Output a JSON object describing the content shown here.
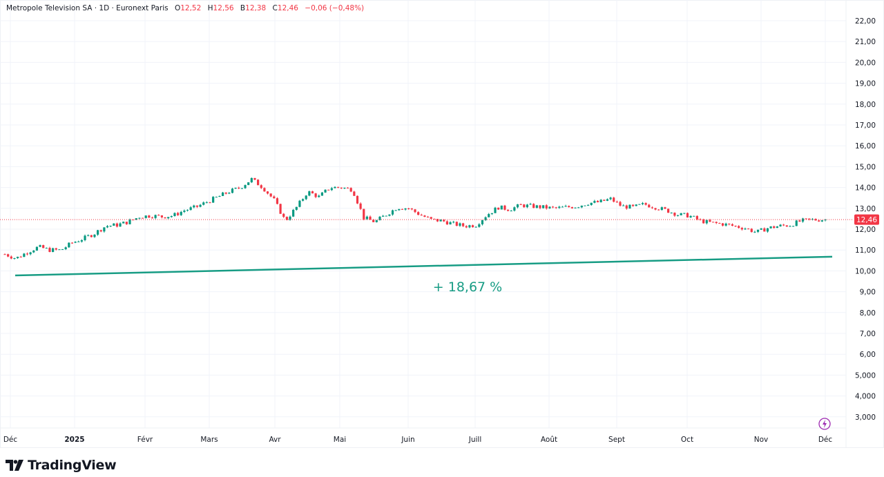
{
  "header": {
    "symbol": "Metropole Television SA · 1D · Euronext Paris",
    "open_label": "O",
    "open": "12,52",
    "high_label": "H",
    "high": "12,56",
    "low_label": "B",
    "low": "12,38",
    "close_label": "C",
    "close": "12,46",
    "change": "−0,06 (−0,48%)"
  },
  "chart_data": {
    "type": "candlestick",
    "y_ticks": [
      "22,00",
      "21,00",
      "20,00",
      "19,00",
      "18,00",
      "17,00",
      "16,00",
      "15,00",
      "14,00",
      "13,00",
      "12,00",
      "11,00",
      "10,00",
      "9,00",
      "8,00",
      "7,00",
      "6,00",
      "5,000",
      "4,000",
      "3,000"
    ],
    "ylim": [
      3,
      22
    ],
    "x_ticks": [
      "Déc",
      "2025",
      "Févr",
      "Mars",
      "Avr",
      "Mai",
      "Juin",
      "Juill",
      "Août",
      "Sept",
      "Oct",
      "Nov",
      "Déc"
    ],
    "closes": [
      10.8,
      10.6,
      10.9,
      11.15,
      11.0,
      11.0,
      11.35,
      11.55,
      11.8,
      12.15,
      12.2,
      12.35,
      12.6,
      12.65,
      12.6,
      12.65,
      12.9,
      13.05,
      13.3,
      13.55,
      13.8,
      14.0,
      14.4,
      14.0,
      13.4,
      12.4,
      13.05,
      13.8,
      13.55,
      14.0,
      14.0,
      13.9,
      12.55,
      12.35,
      12.7,
      13.05,
      13.0,
      12.7,
      12.45,
      12.4,
      12.25,
      12.15,
      12.2,
      12.7,
      13.05,
      12.95,
      13.15,
      13.1,
      13.05,
      13.0,
      13.05,
      13.1,
      13.25,
      13.3,
      13.45,
      13.1,
      13.05,
      13.2,
      13.05,
      12.9,
      12.7,
      12.65,
      12.4,
      12.3,
      12.25,
      12.15,
      12.05,
      11.85,
      12.05,
      12.15,
      12.2,
      12.4,
      12.45,
      12.46
    ],
    "last_price": "12,46",
    "trend_line": {
      "start": 9.78,
      "end": 10.68
    },
    "annotation": "+ 18,67 %",
    "colors": {
      "up": "#089981",
      "down": "#f23645",
      "trend": "#179c84",
      "grid": "#f0f3fa",
      "last_price": "#f23645",
      "icon": "#9c27b0"
    }
  },
  "footer": {
    "brand": "TradingView"
  },
  "icons": {
    "lightning": "lightning-icon",
    "logo": "tradingview-logo-icon"
  }
}
